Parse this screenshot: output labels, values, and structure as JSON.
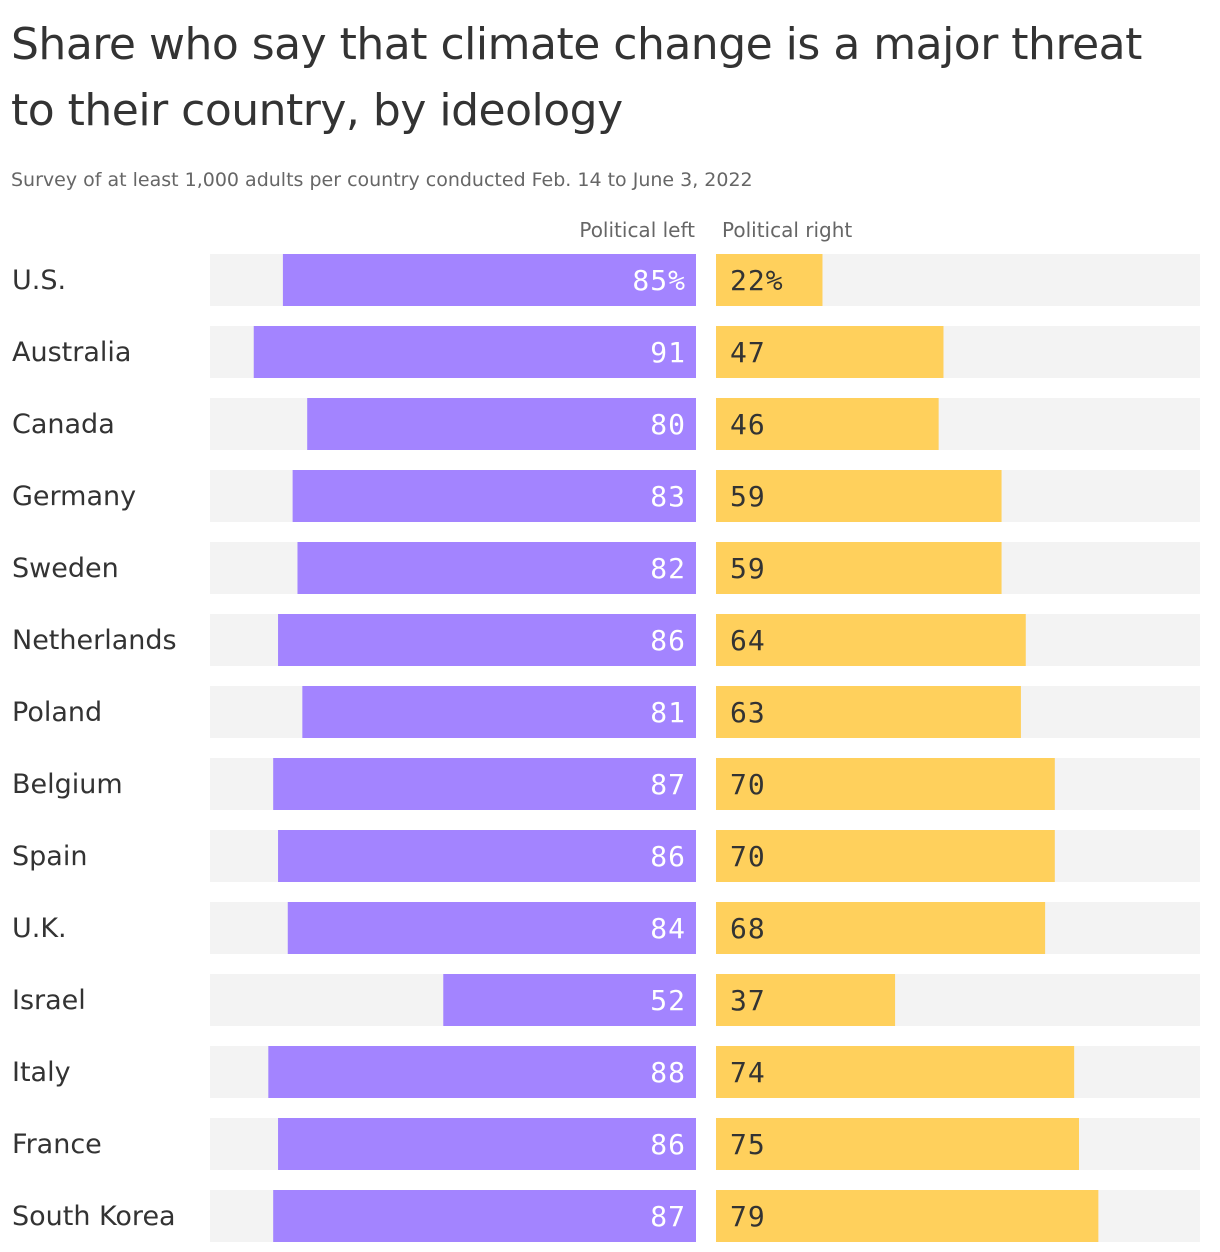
{
  "title": "Share who say that climate change is a major threat to their country, by ideology",
  "subtitle": "Survey of at least 1,000 adults per country conducted Feb. 14 to June 3, 2022",
  "colors": {
    "left": "#a384ff",
    "right": "#ffd05c",
    "track": "#f3f3f3"
  },
  "chart_data": {
    "type": "bar",
    "orientation": "horizontal",
    "layout": "diverging",
    "categories": [
      "U.S.",
      "Australia",
      "Canada",
      "Germany",
      "Sweden",
      "Netherlands",
      "Poland",
      "Belgium",
      "Spain",
      "U.K.",
      "Israel",
      "Italy",
      "France",
      "South Korea"
    ],
    "series": [
      {
        "name": "Political left",
        "color": "#a384ff",
        "values": [
          85,
          91,
          80,
          83,
          82,
          86,
          81,
          87,
          86,
          84,
          52,
          88,
          86,
          87
        ],
        "labels": [
          "85%",
          "91",
          "80",
          "83",
          "82",
          "86",
          "81",
          "87",
          "86",
          "84",
          "52",
          "88",
          "86",
          "87"
        ]
      },
      {
        "name": "Political right",
        "color": "#ffd05c",
        "values": [
          22,
          47,
          46,
          59,
          59,
          64,
          63,
          70,
          70,
          68,
          37,
          74,
          75,
          79
        ],
        "labels": [
          "22%",
          "47",
          "46",
          "59",
          "59",
          "64",
          "63",
          "70",
          "70",
          "68",
          "37",
          "74",
          "75",
          "79"
        ]
      }
    ],
    "xlim": [
      0,
      100
    ],
    "grid": false,
    "legend": "none"
  }
}
